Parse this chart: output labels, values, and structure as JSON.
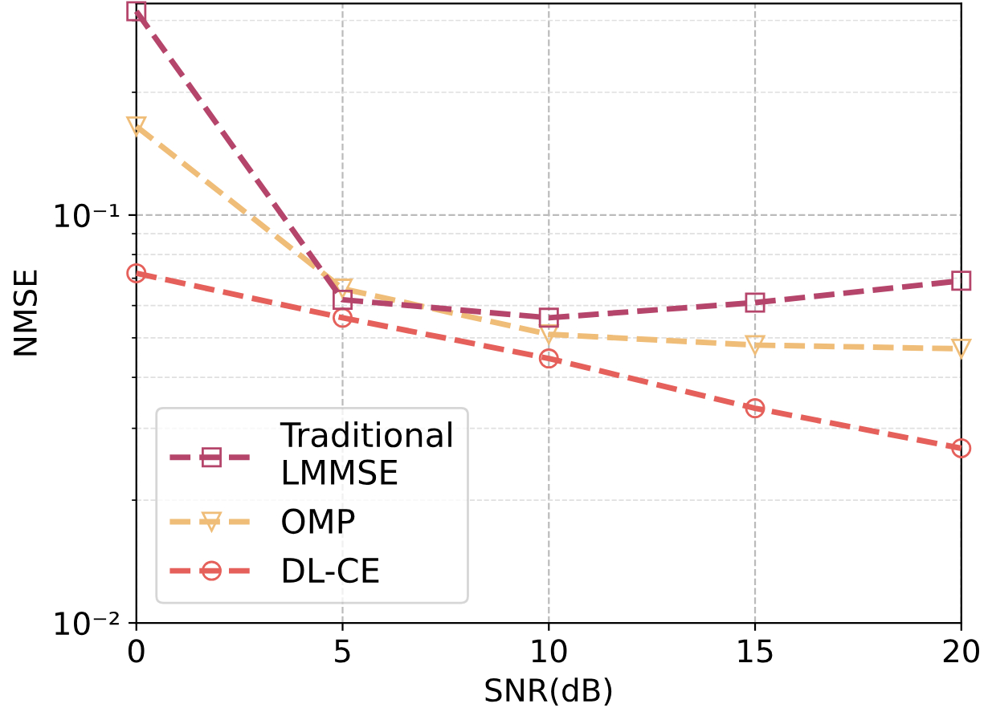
{
  "chart_data": {
    "type": "line",
    "xlabel": "SNR(dB)",
    "ylabel": "NMSE",
    "x": [
      0,
      5,
      10,
      15,
      20
    ],
    "series": [
      {
        "name": "Traditional\nLMMSE",
        "color": "#b5456a",
        "marker": "square",
        "values": [
          0.316,
          0.062,
          0.056,
          0.061,
          0.069
        ]
      },
      {
        "name": "OMP",
        "color": "#f0bd78",
        "marker": "triangle",
        "values": [
          0.165,
          0.066,
          0.051,
          0.048,
          0.047
        ]
      },
      {
        "name": "DL-CE",
        "color": "#e5605a",
        "marker": "circle",
        "values": [
          0.072,
          0.056,
          0.0445,
          0.0336,
          0.0268
        ]
      }
    ],
    "log": "y",
    "xlim": [
      0,
      20
    ],
    "ylim": [
      0.01,
      0.33
    ],
    "xticks": [
      0,
      5,
      10,
      15,
      20
    ],
    "yticks": [
      {
        "value": 0.01,
        "label": "10⁻²"
      },
      {
        "value": 0.1,
        "label": "10⁻¹"
      }
    ],
    "grid": true,
    "legend": "bottom left",
    "line_style": "dashed"
  }
}
